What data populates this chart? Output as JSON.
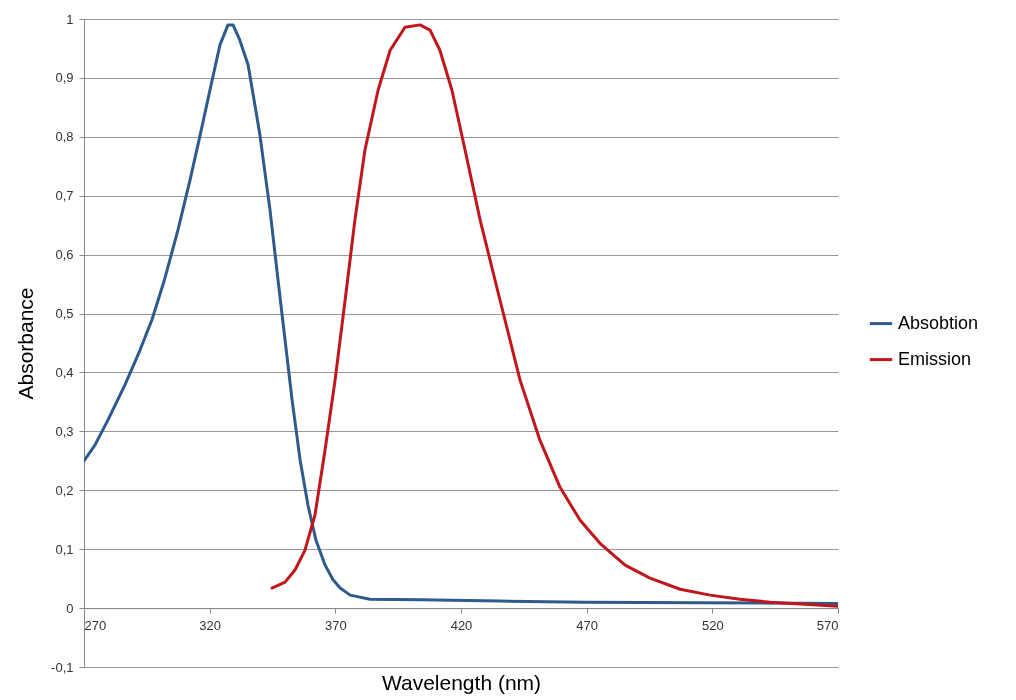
{
  "chart_data": {
    "type": "line",
    "xlabel": "Wavelength (nm)",
    "ylabel": "Absorbance",
    "xlim": [
      270,
      570
    ],
    "xticks": [
      270,
      320,
      370,
      420,
      470,
      520,
      570
    ],
    "ylim": [
      -0.1,
      1
    ],
    "yticks": [
      {
        "value": -0.1,
        "label": "-0,1"
      },
      0,
      {
        "value": 0.1,
        "label": "0,1"
      },
      {
        "value": 0.2,
        "label": "0,2"
      },
      {
        "value": 0.3,
        "label": "0,3"
      },
      {
        "value": 0.4,
        "label": "0,4"
      },
      {
        "value": 0.5,
        "label": "0,5"
      },
      {
        "value": 0.6,
        "label": "0,6"
      },
      {
        "value": 0.7,
        "label": "0,7"
      },
      {
        "value": 0.8,
        "label": "0,8"
      },
      {
        "value": 0.9,
        "label": "0,9"
      },
      1
    ],
    "grid": "y",
    "legend": "right",
    "series": [
      {
        "name": "Absobtion",
        "color": "#2f5a8c",
        "x": [
          270,
          274.4,
          279.5,
          286.3,
          292.3,
          297,
          302,
          307.4,
          312.2,
          316.2,
          320.1,
          324.1,
          327.3,
          329.3,
          332,
          335.3,
          338,
          340,
          341.6,
          344,
          347.2,
          350,
          352.8,
          356,
          359.1,
          362.3,
          365.9,
          369.1,
          371.9,
          375.9,
          383.8,
          403.7,
          435.5,
          469.3,
          515.1,
          570
        ],
        "values": [
          0.25,
          0.277,
          0.319,
          0.379,
          0.438,
          0.489,
          0.557,
          0.642,
          0.727,
          0.803,
          0.879,
          0.956,
          0.99,
          0.99,
          0.964,
          0.922,
          0.854,
          0.803,
          0.752,
          0.676,
          0.557,
          0.455,
          0.353,
          0.251,
          0.175,
          0.115,
          0.073,
          0.048,
          0.034,
          0.022,
          0.015,
          0.014,
          0.012,
          0.01,
          0.009,
          0.008
        ]
      },
      {
        "name": "Emission",
        "color": "#c0161c",
        "x": [
          344.8,
          350,
          354,
          357.9,
          361.9,
          365.9,
          369.9,
          373.9,
          377.8,
          381.8,
          387,
          391.8,
          397.7,
          403.7,
          407.7,
          411.6,
          416.4,
          421.6,
          427.6,
          435.5,
          443.5,
          451.4,
          459.4,
          467.4,
          475.3,
          485.3,
          495.2,
          507.2,
          519.1,
          531,
          543,
          555,
          570
        ],
        "values": [
          0.034,
          0.044,
          0.065,
          0.098,
          0.158,
          0.268,
          0.387,
          0.523,
          0.659,
          0.778,
          0.879,
          0.947,
          0.986,
          0.99,
          0.981,
          0.947,
          0.879,
          0.778,
          0.659,
          0.523,
          0.387,
          0.285,
          0.205,
          0.149,
          0.11,
          0.073,
          0.051,
          0.032,
          0.022,
          0.015,
          0.01,
          0.007,
          0.003
        ]
      }
    ]
  }
}
